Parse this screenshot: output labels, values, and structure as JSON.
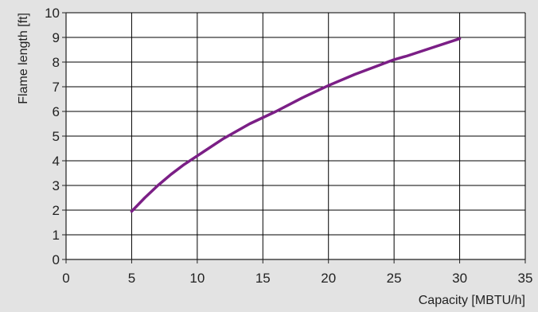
{
  "chart_data": {
    "type": "line",
    "title": "",
    "xlabel": "Capacity [MBTU/h]",
    "ylabel": "Flame length [ft]",
    "xlim": [
      0,
      35
    ],
    "ylim": [
      0,
      10
    ],
    "xticks": [
      0,
      5,
      10,
      15,
      20,
      25,
      30,
      35
    ],
    "yticks": [
      0,
      1,
      2,
      3,
      4,
      5,
      6,
      7,
      8,
      9,
      10
    ],
    "grid": true,
    "legend": "none",
    "colors": {
      "background": "#e3e3e3",
      "plot_background": "#ffffff",
      "grid": "#000000",
      "series": "#7b1f86"
    },
    "series": [
      {
        "x": [
          5,
          6,
          7,
          8,
          9,
          10,
          12,
          14,
          16,
          18,
          20,
          22,
          24,
          25,
          26,
          28,
          30
        ],
        "y": [
          1.95,
          2.5,
          3.0,
          3.45,
          3.85,
          4.2,
          4.9,
          5.5,
          6.0,
          6.55,
          7.05,
          7.5,
          7.9,
          8.1,
          8.25,
          8.6,
          8.95
        ]
      }
    ]
  }
}
